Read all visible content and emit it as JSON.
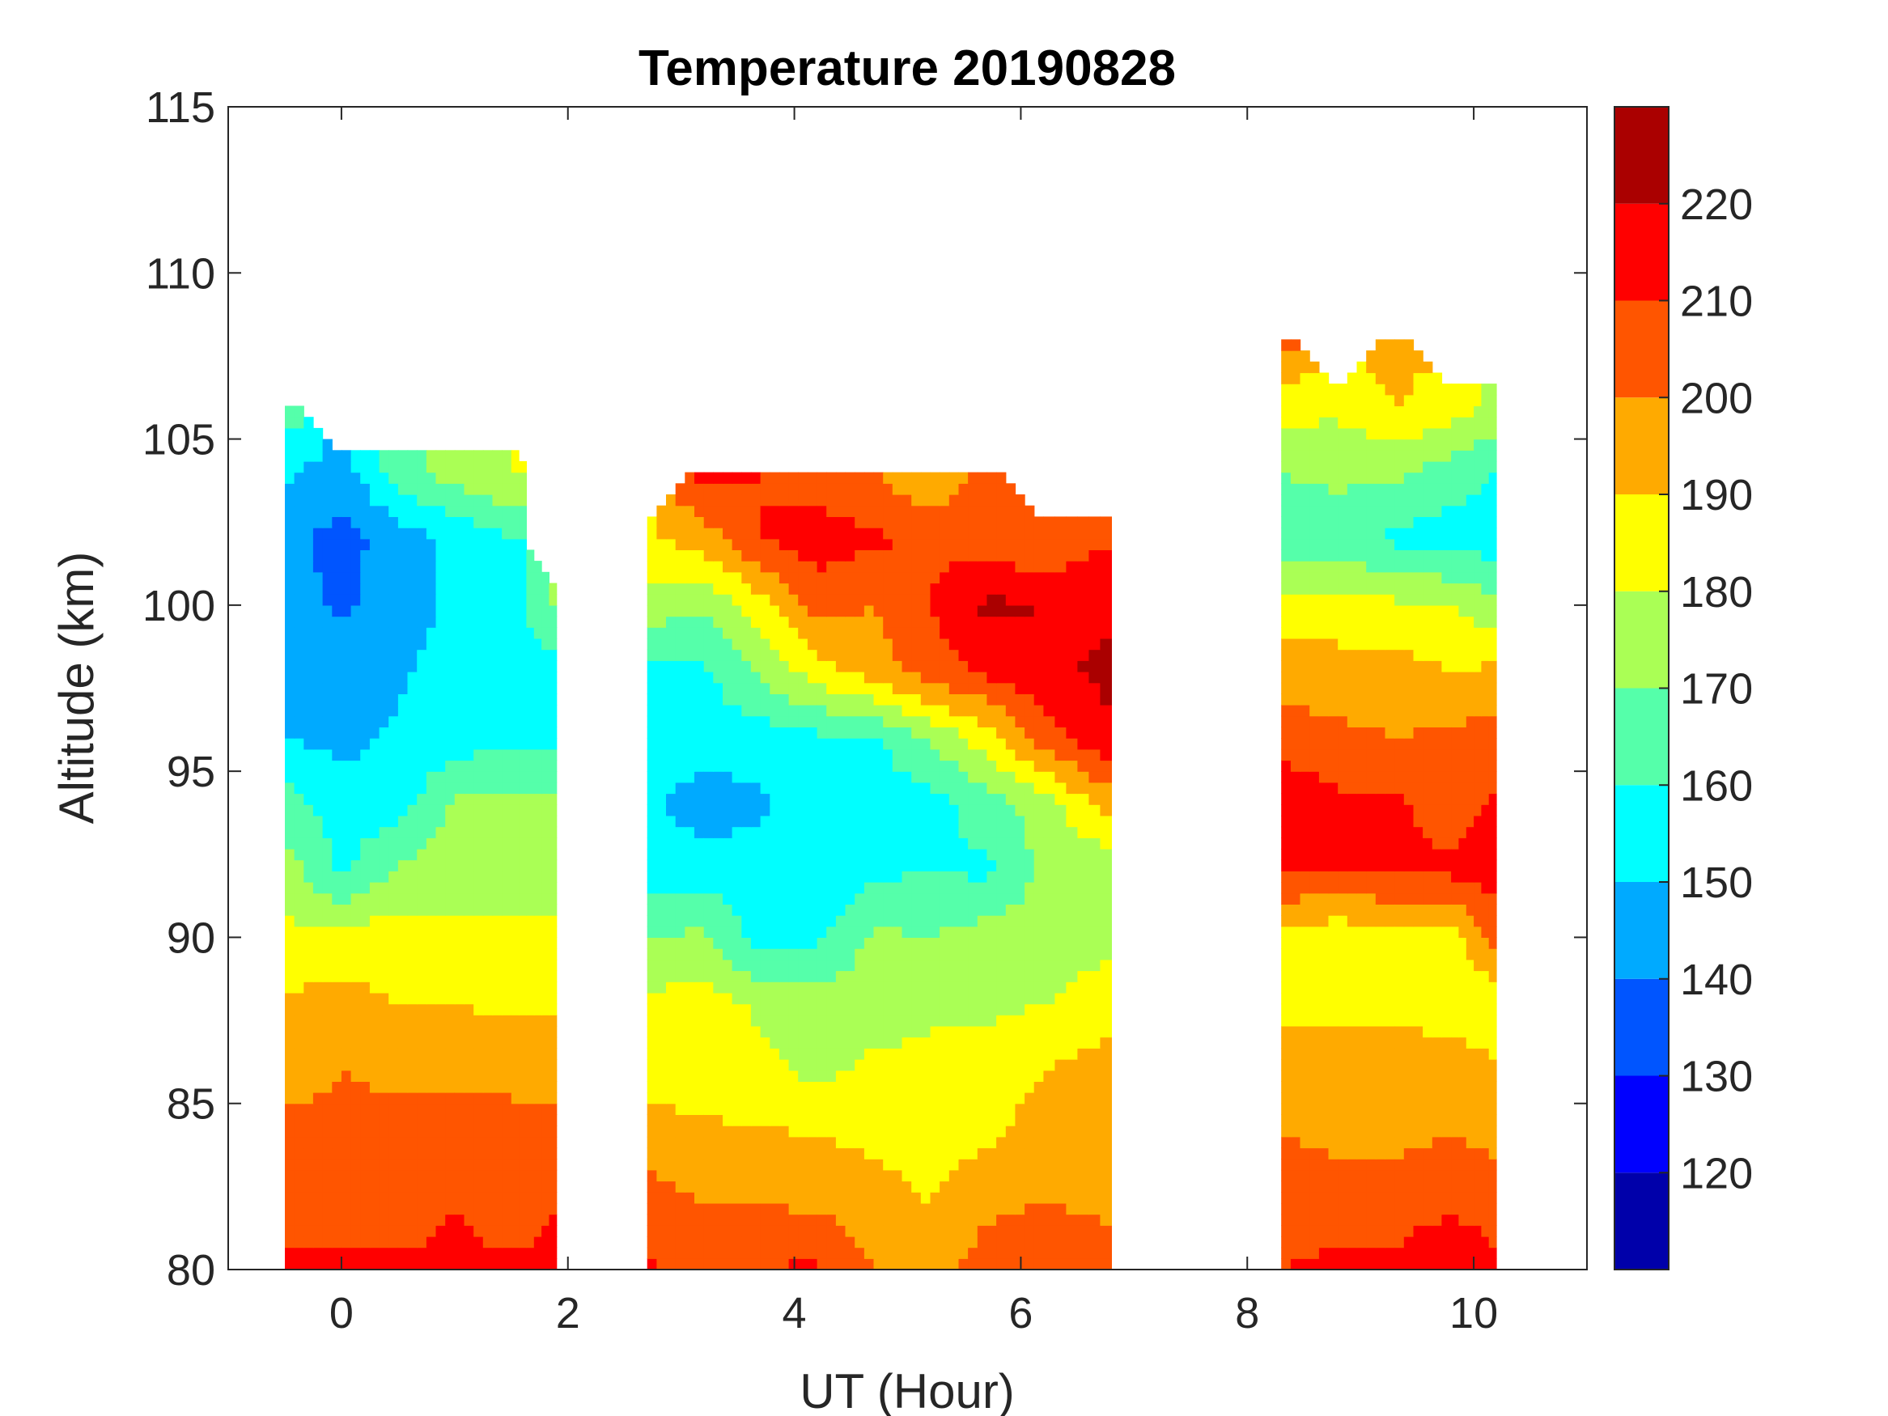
{
  "chart_data": {
    "type": "heatmap",
    "subtype": "filled-contour",
    "title": "Temperature 20190828",
    "xlabel": "UT (Hour)",
    "ylabel": "Altitude (km)",
    "xlim": [
      -1,
      11
    ],
    "ylim": [
      80,
      115
    ],
    "xticks": [
      0,
      2,
      4,
      6,
      8,
      10
    ],
    "yticks": [
      80,
      85,
      90,
      95,
      100,
      105,
      110,
      115
    ],
    "colorbar": {
      "range": [
        110,
        230
      ],
      "levels": [
        110,
        120,
        130,
        140,
        150,
        160,
        170,
        180,
        190,
        200,
        210,
        220,
        230
      ],
      "ticks": [
        120,
        130,
        140,
        150,
        160,
        170,
        180,
        190,
        200,
        210,
        220
      ],
      "colors": [
        "#0000aa",
        "#0000ff",
        "#0055ff",
        "#00aaff",
        "#00ffff",
        "#55ffaa",
        "#aaff55",
        "#ffff00",
        "#ffaa00",
        "#ff5500",
        "#ff0000",
        "#aa0000"
      ]
    },
    "altitudes_note_unit": "km",
    "segments": [
      {
        "hours": [
          -0.5,
          0,
          0.5,
          1.0,
          1.5,
          1.9
        ],
        "altitudes": [
          80,
          82,
          84,
          86,
          88,
          90,
          92,
          94,
          96,
          98,
          100,
          102,
          104,
          106
        ],
        "temperature": [
          [
            212,
            212,
            212,
            212,
            212,
            212
          ],
          [
            205,
            206,
            205,
            210,
            205,
            210
          ],
          [
            203,
            202,
            204,
            203,
            203,
            202
          ],
          [
            196,
            200,
            198,
            198,
            198,
            197
          ],
          [
            192,
            193,
            190,
            190,
            188,
            188
          ],
          [
            182,
            185,
            185,
            183,
            182,
            182
          ],
          [
            175,
            158,
            172,
            175,
            175,
            175
          ],
          [
            165,
            155,
            155,
            172,
            172,
            172
          ],
          [
            150,
            147,
            152,
            155,
            158,
            158
          ],
          [
            148,
            145,
            148,
            155,
            155,
            155
          ],
          [
            145,
            138,
            145,
            152,
            155,
            172
          ],
          [
            143,
            136,
            145,
            152,
            160,
            null
          ],
          [
            152,
            145,
            165,
            175,
            180,
            null
          ],
          [
            165,
            null,
            null,
            null,
            null,
            null
          ]
        ]
      },
      {
        "hours": [
          2.7,
          3.2,
          3.7,
          4.2,
          4.7,
          5.2,
          5.7,
          6.2,
          6.8
        ],
        "altitudes": [
          80,
          82,
          84,
          86,
          88,
          90,
          92,
          94,
          96,
          98,
          100,
          102,
          104
        ],
        "temperature": [
          [
            212,
            205,
            210,
            212,
            200,
            195,
            205,
            208,
            205
          ],
          [
            205,
            200,
            200,
            198,
            195,
            190,
            198,
            200,
            198
          ],
          [
            195,
            192,
            192,
            190,
            188,
            185,
            188,
            195,
            195
          ],
          [
            185,
            185,
            182,
            178,
            182,
            183,
            185,
            190,
            195
          ],
          [
            182,
            185,
            178,
            175,
            175,
            178,
            178,
            180,
            185
          ],
          [
            170,
            172,
            155,
            158,
            172,
            170,
            175,
            175,
            178
          ],
          [
            155,
            155,
            155,
            152,
            158,
            160,
            158,
            172,
            172
          ],
          [
            152,
            145,
            148,
            155,
            155,
            155,
            165,
            175,
            195
          ],
          [
            155,
            155,
            155,
            158,
            158,
            172,
            185,
            205,
            220
          ],
          [
            158,
            158,
            172,
            185,
            195,
            205,
            212,
            218,
            222
          ],
          [
            175,
            172,
            185,
            205,
            200,
            210,
            222,
            220,
            218
          ],
          [
            188,
            195,
            210,
            215,
            212,
            208,
            205,
            200,
            210
          ],
          [
            null,
            212,
            210,
            205,
            200,
            190,
            205,
            null,
            null
          ]
        ]
      },
      {
        "hours": [
          8.3,
          8.8,
          9.3,
          9.8,
          10.2
        ],
        "altitudes": [
          80,
          82,
          84,
          86,
          88,
          90,
          92,
          94,
          96,
          98,
          100,
          102,
          104,
          106,
          108
        ],
        "temperature": [
          [
            210,
            212,
            212,
            220,
            212
          ],
          [
            208,
            205,
            205,
            208,
            205
          ],
          [
            200,
            198,
            198,
            200,
            198
          ],
          [
            195,
            195,
            195,
            195,
            192
          ],
          [
            188,
            188,
            188,
            185,
            182
          ],
          [
            185,
            183,
            185,
            185,
            205
          ],
          [
            212,
            210,
            212,
            212,
            215
          ],
          [
            220,
            212,
            212,
            205,
            212
          ],
          [
            205,
            202,
            200,
            202,
            205
          ],
          [
            195,
            195,
            195,
            190,
            192
          ],
          [
            185,
            183,
            182,
            180,
            172
          ],
          [
            165,
            165,
            158,
            155,
            155
          ],
          [
            170,
            172,
            172,
            165,
            160
          ],
          [
            185,
            182,
            190,
            185,
            178
          ],
          [
            205,
            null,
            195,
            null,
            null
          ]
        ]
      }
    ]
  }
}
